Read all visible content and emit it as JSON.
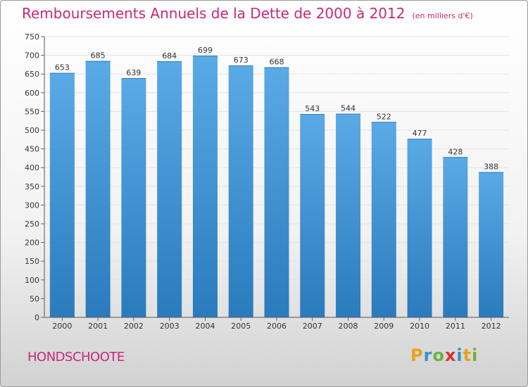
{
  "title": "Remboursements Annuels de la Dette de 2000 à 2012",
  "unit": "(en milliers d'€)",
  "commune": "HONDSCHOOTE",
  "logo": {
    "text": "Proxiti",
    "letters": [
      {
        "char": "P",
        "color": "#e8a21a"
      },
      {
        "char": "r",
        "color": "#3a8fd0"
      },
      {
        "char": "o",
        "color": "#6cb33e"
      },
      {
        "char": "x",
        "color": "#d9322e"
      },
      {
        "char": "i",
        "color": "#3a8fd0"
      },
      {
        "char": "t",
        "color": "#e8a21a"
      },
      {
        "char": "i",
        "color": "#6cb33e"
      }
    ]
  },
  "colors": {
    "bar_light": "#5aaae6",
    "bar_dark": "#2a7bbd",
    "accent": "#c8277e"
  },
  "chart_data": {
    "type": "bar",
    "categories": [
      "2000",
      "2001",
      "2002",
      "2003",
      "2004",
      "2005",
      "2006",
      "2007",
      "2008",
      "2009",
      "2010",
      "2011",
      "2012"
    ],
    "values": [
      653,
      685,
      639,
      684,
      699,
      673,
      668,
      543,
      544,
      522,
      477,
      428,
      388
    ],
    "ylim": [
      0,
      750
    ],
    "yticks": [
      0,
      50,
      100,
      150,
      200,
      250,
      300,
      350,
      400,
      450,
      500,
      550,
      600,
      650,
      700,
      750
    ],
    "grid": true,
    "legend": "none"
  }
}
